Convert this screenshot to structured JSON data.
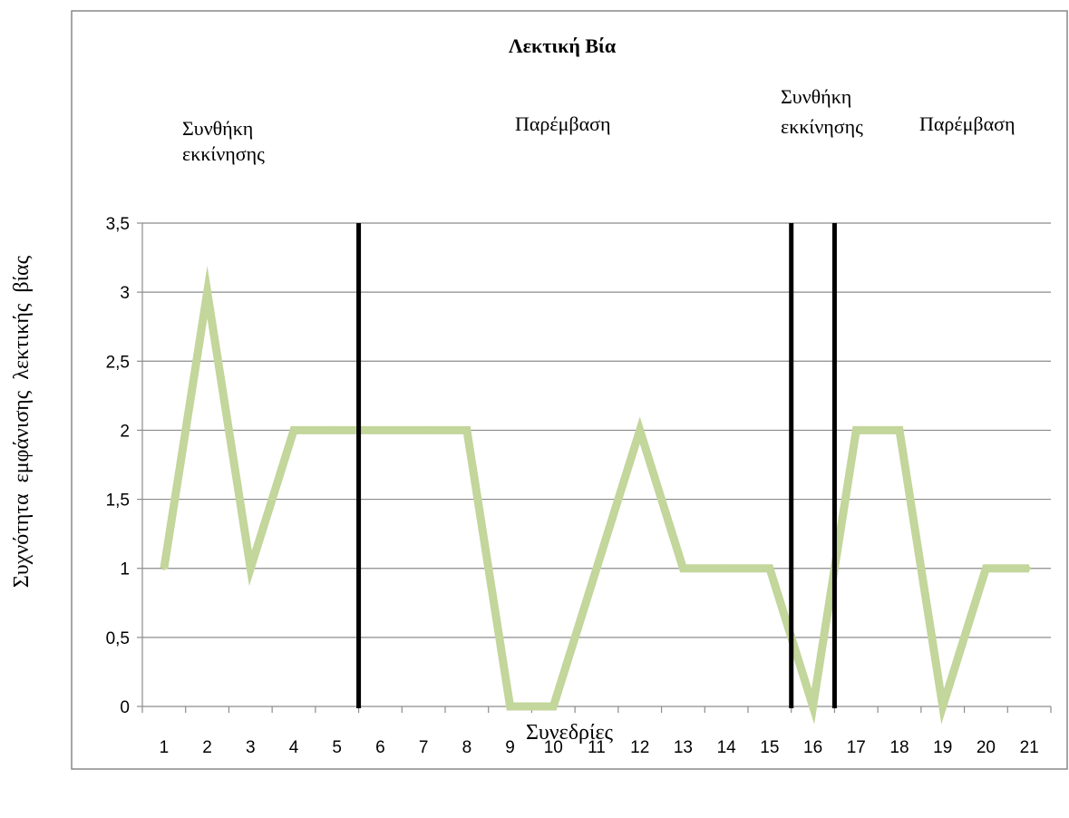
{
  "chart_data": {
    "type": "line",
    "title": "Λεκτική Βία",
    "xlabel": "Συνεδρίες",
    "ylabel": "Συχνότητα  εμφάνισης  λεκτικής  βίας",
    "categories": [
      "1",
      "2",
      "3",
      "4",
      "5",
      "6",
      "7",
      "8",
      "9",
      "10",
      "11",
      "12",
      "13",
      "14",
      "15",
      "16",
      "17",
      "18",
      "19",
      "20",
      "21"
    ],
    "series": [
      {
        "values": [
          1,
          3,
          1,
          2,
          2,
          2,
          2,
          2,
          0,
          0,
          1,
          2,
          1,
          1,
          1,
          0,
          2,
          2,
          0,
          1,
          1
        ]
      }
    ],
    "ylim": [
      0,
      3.5
    ],
    "y_ticks": [
      "0",
      "0,5",
      "1",
      "1,5",
      "2",
      "2,5",
      "3",
      "3,5"
    ],
    "grid": true,
    "line_color": "#c3d69b",
    "phase_lines_after_session": [
      5.5,
      15.5,
      16.5
    ],
    "phases": [
      {
        "label_lines": [
          "Συνθήκη",
          "εκκίνησης"
        ]
      },
      {
        "label_lines": [
          "Παρέμβαση"
        ]
      },
      {
        "label_lines": [
          "Συνθήκη",
          "εκκίνησης"
        ]
      },
      {
        "label_lines": [
          "Παρέμβαση"
        ]
      }
    ]
  }
}
